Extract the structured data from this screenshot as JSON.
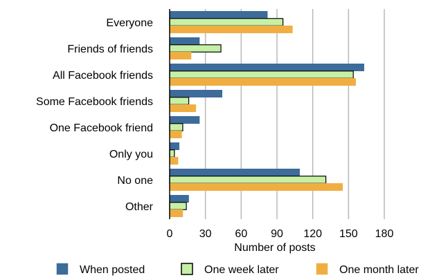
{
  "chart_data": {
    "type": "bar",
    "orientation": "horizontal",
    "categories": [
      "Everyone",
      "Friends of friends",
      "All Facebook friends",
      "Some Facebook friends",
      "One Facebook friend",
      "Only you",
      "No one",
      "Other"
    ],
    "series": [
      {
        "name": "When posted",
        "color": "#3d6b9a",
        "stroke": "#3d6b9a",
        "values": [
          82,
          25,
          163,
          44,
          25,
          8,
          109,
          16
        ]
      },
      {
        "name": "One week later",
        "color": "#c6f0a6",
        "stroke": "#000000",
        "values": [
          95,
          43,
          154,
          16,
          11,
          4,
          131,
          14
        ]
      },
      {
        "name": "One month later",
        "color": "#f0ae42",
        "stroke": "#f0ae42",
        "values": [
          103,
          18,
          156,
          22,
          10,
          7,
          145,
          11
        ]
      }
    ],
    "xlabel": "Number of posts",
    "xlim": [
      0,
      190
    ],
    "xticks": [
      0,
      30,
      60,
      90,
      120,
      150,
      180
    ],
    "grid": "vertical",
    "legend_position": "bottom"
  }
}
